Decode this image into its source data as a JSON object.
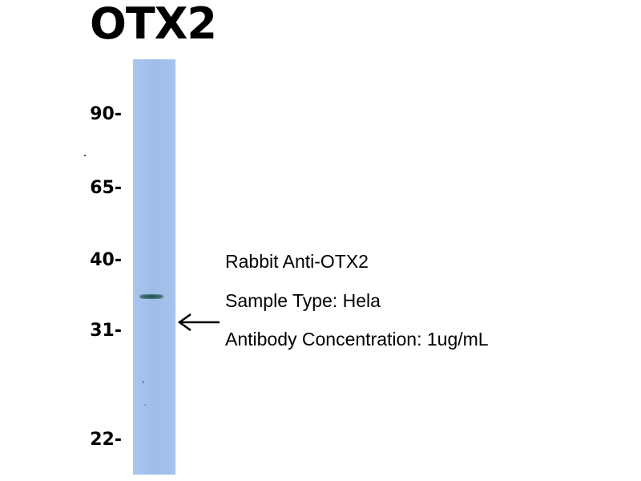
{
  "title": "OTX2",
  "markers": [
    "90-",
    "65-",
    "40-",
    "31-",
    "22-"
  ],
  "annotations": {
    "line1": "Rabbit Anti-OTX2",
    "line2": "Sample Type: Hela",
    "line3": "Antibody Concentration: 1ug/mL"
  },
  "colors": {
    "lane": "#a6c3ec",
    "band": "#2f5e5a"
  }
}
